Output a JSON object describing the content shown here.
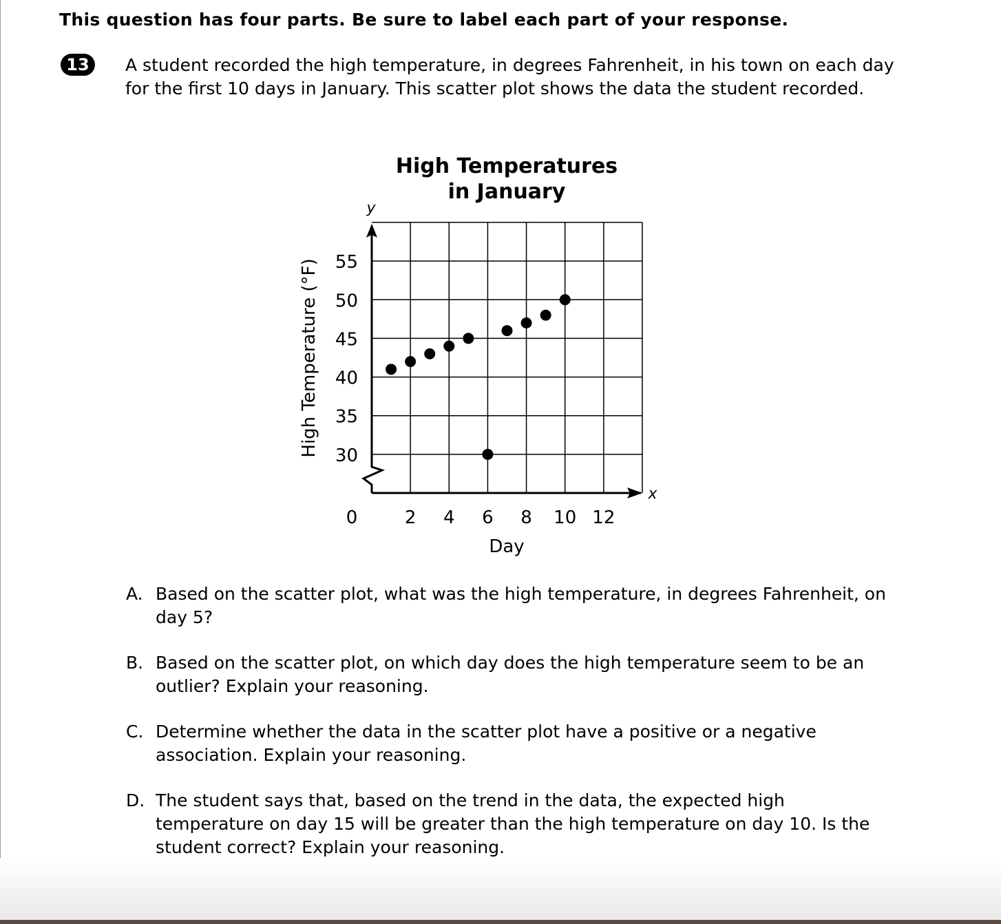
{
  "header": "This question has four parts. Be sure to label each part of your response.",
  "question": {
    "number": "13",
    "stem": "A student recorded the high temperature, in degrees Fahrenheit, in his town on each day for the first 10 days in January. This scatter plot shows the data the student recorded."
  },
  "chart_data": {
    "type": "scatter",
    "title_line1": "High Temperatures",
    "title_line2": "in January",
    "xlabel": "Day",
    "ylabel": "High Temperature (°F)",
    "x_axis_letter": "x",
    "y_axis_letter": "y",
    "x_ticks": [
      "0",
      "2",
      "4",
      "6",
      "8",
      "10",
      "12"
    ],
    "y_ticks": [
      "30",
      "35",
      "40",
      "45",
      "50",
      "55"
    ],
    "xlim": [
      0,
      14
    ],
    "ylim": [
      25,
      60
    ],
    "y_axis_break": true,
    "grid": true,
    "points": [
      {
        "x": 1,
        "y": 41
      },
      {
        "x": 2,
        "y": 42
      },
      {
        "x": 3,
        "y": 43
      },
      {
        "x": 4,
        "y": 44
      },
      {
        "x": 5,
        "y": 45
      },
      {
        "x": 6,
        "y": 30
      },
      {
        "x": 7,
        "y": 46
      },
      {
        "x": 8,
        "y": 47
      },
      {
        "x": 9,
        "y": 48
      },
      {
        "x": 10,
        "y": 50
      }
    ]
  },
  "parts": [
    {
      "label": "A.",
      "text": "Based on the scatter plot, what was the high temperature, in degrees Fahrenheit, on day 5?"
    },
    {
      "label": "B.",
      "text": "Based on the scatter plot, on which day does the high temperature seem to be an outlier? Explain your reasoning."
    },
    {
      "label": "C.",
      "text": "Determine whether the data in the scatter plot have a positive or a negative association. Explain your reasoning."
    },
    {
      "label": "D.",
      "text": "The student says that, based on the trend in the data, the expected high temperature on day 15 will be greater than the high temperature on day 10. Is the student correct? Explain your reasoning."
    }
  ]
}
